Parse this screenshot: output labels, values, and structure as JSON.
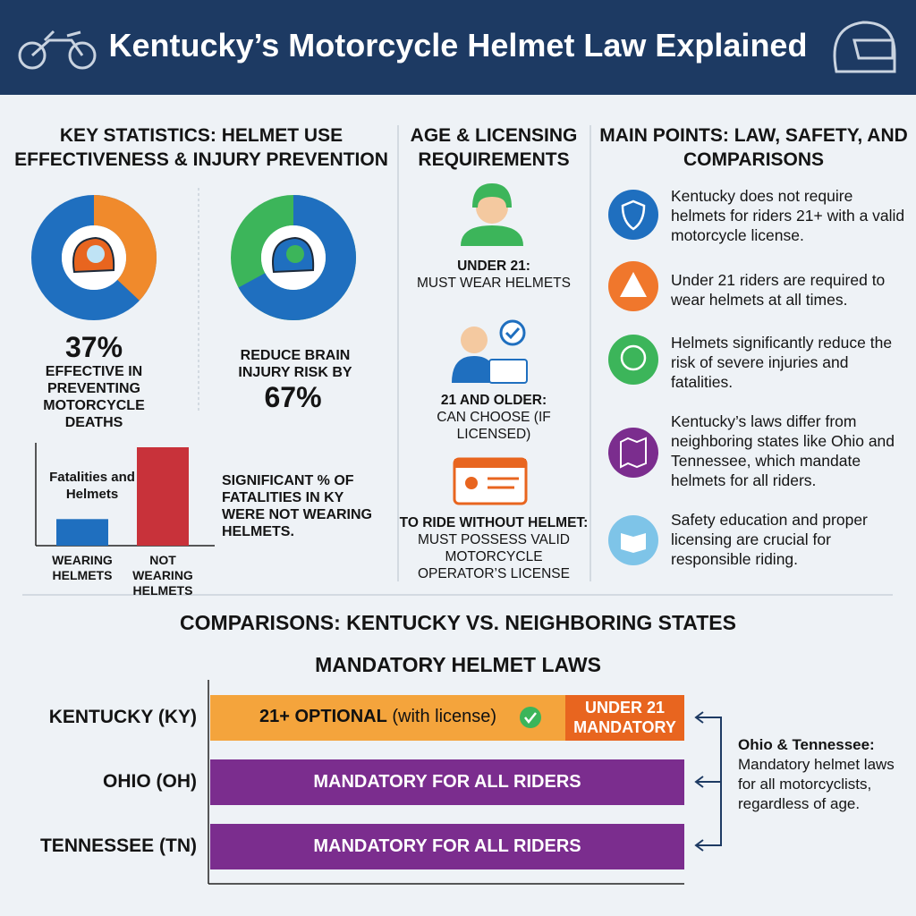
{
  "header": {
    "title": "Kentucky’s Motorcycle Helmet Law Explained"
  },
  "statistics": {
    "title": "KEY STATISTICS: HELMET USE EFFECTIVENESS & INJURY PREVENTION",
    "donuts": [
      {
        "value": 37,
        "value_label": "37%",
        "caption": "EFFECTIVE IN PREVENTING MOTORCYCLE DEATHS",
        "color": "#f08a2c",
        "rest_color": "#1f6fbf"
      },
      {
        "value": 67,
        "value_label": "67%",
        "caption": "REDUCE BRAIN INJURY RISK BY",
        "color": "#1f6fbf",
        "rest_color": "#3cb55a"
      }
    ],
    "bar_chart": {
      "type": "bar",
      "title": "Fatalities and Helmets",
      "categories": [
        "WEARING HELMETS",
        "NOT WEARING HELMETS"
      ],
      "values": [
        27,
        100
      ],
      "colors": [
        "#1f6fbf",
        "#c8323a"
      ]
    },
    "note": "SIGNIFICANT % OF FATALITIES IN KY WERE NOT WEARING HELMETS."
  },
  "age": {
    "title": "AGE & LICENSING REQUIREMENTS",
    "items": [
      {
        "heading": "UNDER 21:",
        "text": "MUST WEAR HELMETS"
      },
      {
        "heading": "21 AND OLDER:",
        "text": "CAN CHOOSE (IF LICENSED)"
      },
      {
        "heading": "TO RIDE WITHOUT HELMET:",
        "text": "MUST POSSESS VALID MOTORCYCLE OPERATOR’S LICENSE"
      }
    ]
  },
  "main_points": {
    "title": "MAIN POINTS: LAW, SAFETY, AND COMPARISONS",
    "items": [
      "Kentucky does not require helmets for riders 21+ with a valid motorcycle license.",
      "Under 21 riders are required to wear helmets at all times.",
      "Helmets significantly reduce the risk of severe injuries and fatalities.",
      "Kentucky’s laws differ from neighboring states like Ohio and Tennessee, which mandate helmets for all riders.",
      "Safety education and proper licensing are crucial for responsible riding."
    ]
  },
  "comparison": {
    "title": "COMPARISONS: KENTUCKY VS. NEIGHBORING STATES",
    "subtitle": "MANDATORY HELMET LAWS",
    "rows": [
      {
        "state": "KENTUCKY (KY)",
        "optional": "21+ OPTIONAL",
        "optional_note": "(with license)",
        "mandatory": "UNDER 21 MANDATORY"
      },
      {
        "state": "OHIO (OH)",
        "label": "MANDATORY FOR ALL RIDERS"
      },
      {
        "state": "TENNESSEE (TN)",
        "label": "MANDATORY FOR ALL RIDERS"
      }
    ],
    "side_note": {
      "heading": "Ohio & Tennessee:",
      "text": "Mandatory helmet laws for all motorcyclists, regardless of age."
    }
  }
}
